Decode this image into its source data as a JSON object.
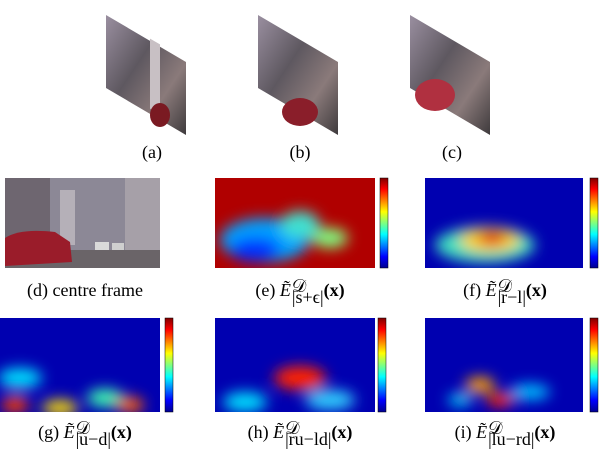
{
  "panels": [
    {
      "label": "(a)"
    },
    {
      "label": "(b)"
    },
    {
      "label": "(c)"
    },
    {
      "label": "(d)",
      "text": "centre frame"
    },
    {
      "label": "(e)",
      "symbol": "Ẽ",
      "sup": "𝒟",
      "sub": "|s+ϵ|",
      "arg": "(x)"
    },
    {
      "label": "(f)",
      "symbol": "Ẽ",
      "sup": "𝒟",
      "sub": "|r−l|",
      "arg": "(x)"
    },
    {
      "label": "(g)",
      "symbol": "Ẽ",
      "sup": "𝒟",
      "sub": "|u−d|",
      "arg": "(x)"
    },
    {
      "label": "(h)",
      "symbol": "Ẽ",
      "sup": "𝒟",
      "sub": "|ru−ld|",
      "arg": "(x)"
    },
    {
      "label": "(i)",
      "symbol": "Ẽ",
      "sup": "𝒟",
      "sub": "|lu−rd|",
      "arg": "(x)"
    }
  ]
}
